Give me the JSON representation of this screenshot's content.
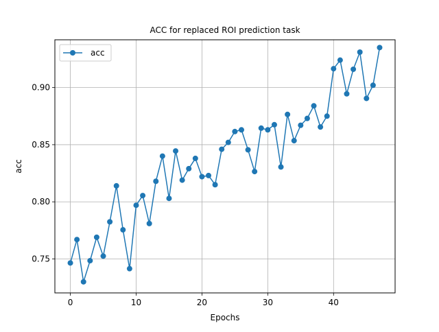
{
  "chart_data": {
    "type": "line",
    "title": "ACC for replaced ROI prediction task",
    "xlabel": "Epochs",
    "ylabel": "acc",
    "xlim": [
      -2.35,
      49.35
    ],
    "ylim": [
      0.7203,
      0.9418
    ],
    "x_ticks": [
      0,
      10,
      20,
      30,
      40
    ],
    "y_ticks": [
      0.75,
      0.8,
      0.85,
      0.9
    ],
    "x_tick_labels": [
      "0",
      "10",
      "20",
      "30",
      "40"
    ],
    "y_tick_labels": [
      "0.75",
      "0.80",
      "0.85",
      "0.90"
    ],
    "grid": true,
    "legend_position": "upper-left",
    "series": [
      {
        "name": "acc",
        "color": "#1f77b4",
        "marker": "circle",
        "x": [
          0,
          1,
          2,
          3,
          4,
          5,
          6,
          7,
          8,
          9,
          10,
          11,
          12,
          13,
          14,
          15,
          16,
          17,
          18,
          19,
          20,
          21,
          22,
          23,
          24,
          25,
          26,
          27,
          28,
          29,
          30,
          31,
          32,
          33,
          34,
          35,
          36,
          37,
          38,
          39,
          40,
          41,
          42,
          43,
          44,
          45,
          46,
          47
        ],
        "values": [
          0.7465,
          0.767,
          0.73,
          0.7485,
          0.769,
          0.7525,
          0.7825,
          0.814,
          0.7755,
          0.7415,
          0.797,
          0.8055,
          0.781,
          0.818,
          0.84,
          0.803,
          0.8445,
          0.819,
          0.829,
          0.838,
          0.822,
          0.823,
          0.815,
          0.846,
          0.852,
          0.8615,
          0.863,
          0.8455,
          0.8265,
          0.8645,
          0.863,
          0.8675,
          0.8305,
          0.8765,
          0.8535,
          0.867,
          0.873,
          0.884,
          0.8655,
          0.875,
          0.9165,
          0.924,
          0.8945,
          0.916,
          0.931,
          0.8905,
          0.902,
          0.935
        ]
      }
    ]
  }
}
